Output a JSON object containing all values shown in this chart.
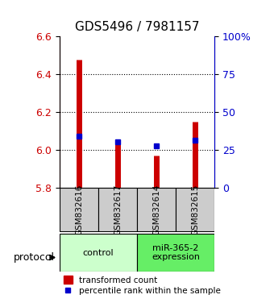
{
  "title": "GDS5496 / 7981157",
  "samples": [
    "GSM832616",
    "GSM832617",
    "GSM832614",
    "GSM832615"
  ],
  "transformed_counts": [
    6.475,
    6.05,
    5.97,
    6.15
  ],
  "percentile_ranks": [
    6.07,
    6.04,
    6.02,
    6.05
  ],
  "ylim_left": [
    5.8,
    6.6
  ],
  "ylim_right": [
    0,
    100
  ],
  "yticks_left": [
    5.8,
    6.0,
    6.2,
    6.4,
    6.6
  ],
  "yticks_right": [
    0,
    25,
    50,
    75,
    100
  ],
  "ytick_right_labels": [
    "0",
    "25",
    "50",
    "75",
    "100%"
  ],
  "bar_bottom": 5.8,
  "bar_color": "#cc0000",
  "marker_color": "#0000cc",
  "groups": [
    {
      "label": "control",
      "indices": [
        0,
        1
      ],
      "color": "#ccffcc"
    },
    {
      "label": "miR-365-2\nexpression",
      "indices": [
        2,
        3
      ],
      "color": "#66ee66"
    }
  ],
  "protocol_label": "protocol",
  "legend_bar_label": "transformed count",
  "legend_marker_label": "percentile rank within the sample",
  "background_color": "#ffffff",
  "sample_box_color": "#cccccc",
  "title_fontsize": 11,
  "tick_fontsize": 9
}
